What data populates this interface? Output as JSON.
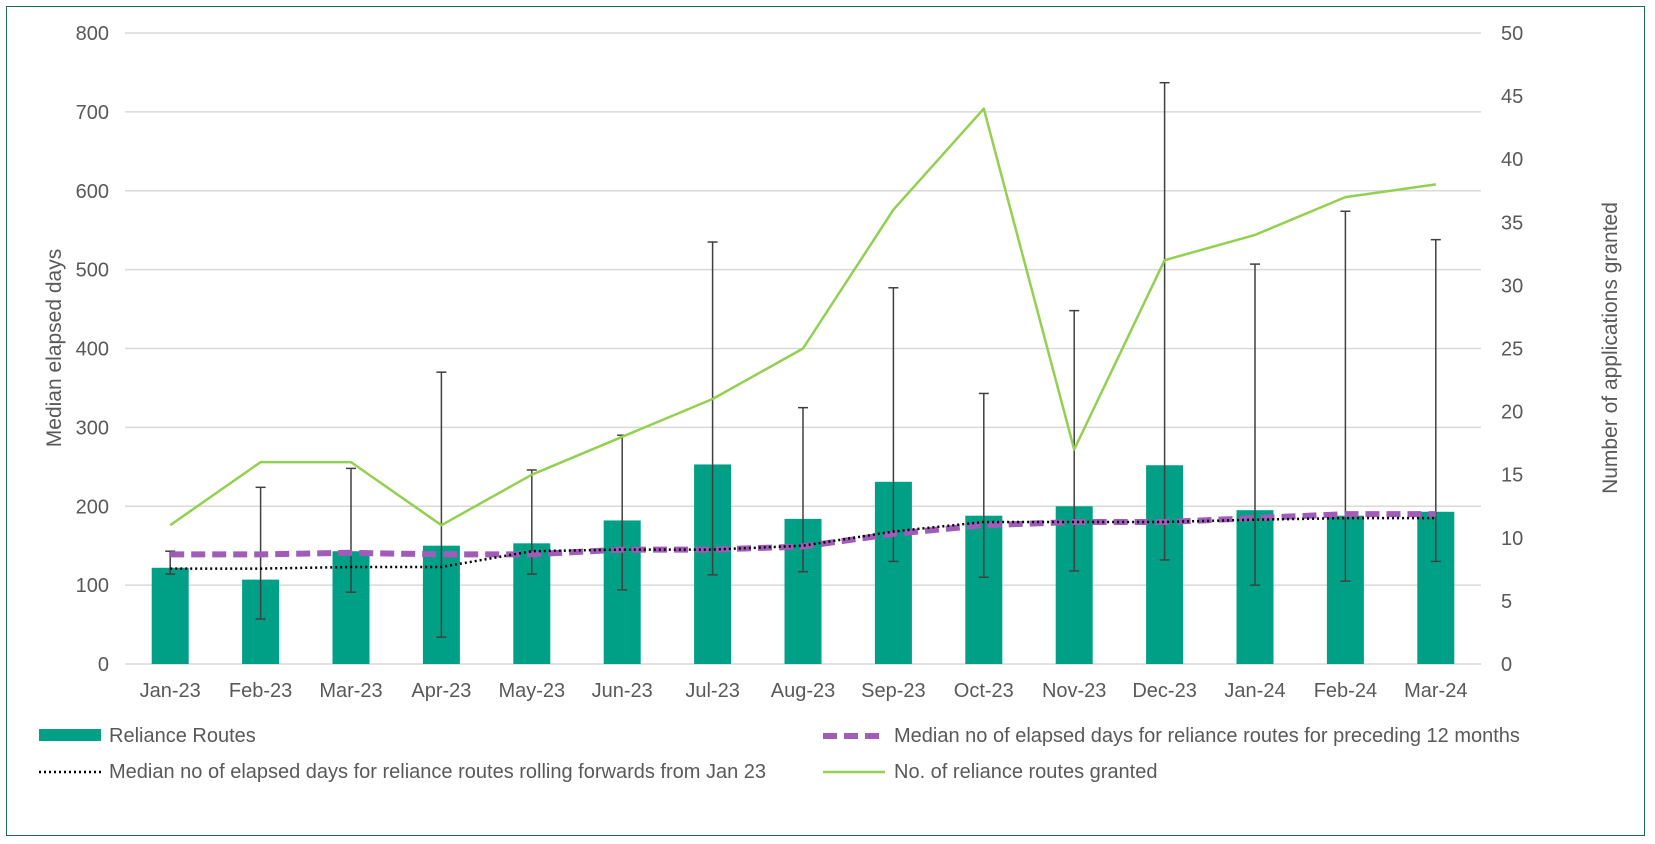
{
  "chart_data": {
    "type": "bar",
    "categories": [
      "Jan-23",
      "Feb-23",
      "Mar-23",
      "Apr-23",
      "May-23",
      "Jun-23",
      "Jul-23",
      "Aug-23",
      "Sep-23",
      "Oct-23",
      "Nov-23",
      "Dec-23",
      "Jan-24",
      "Feb-24",
      "Mar-24"
    ],
    "ylabel": "Median elapsed days",
    "y2label": "Number  of applications granted",
    "ylim": [
      0,
      800
    ],
    "y2lim": [
      0,
      50
    ],
    "yticks": [
      "0",
      "100",
      "200",
      "300",
      "400",
      "500",
      "600",
      "700",
      "800"
    ],
    "y2ticks": [
      "0",
      "5",
      "10",
      "15",
      "20",
      "25",
      "30",
      "35",
      "40",
      "45",
      "50"
    ],
    "grid": true,
    "legend_position": "bottom",
    "series": [
      {
        "name": "Reliance Routes",
        "kind": "bar",
        "axis": "left",
        "color": "#00a087",
        "values": [
          122,
          107,
          143,
          150,
          153,
          182,
          253,
          184,
          231,
          188,
          200,
          252,
          195,
          188,
          193
        ],
        "error_low": [
          114,
          57,
          91,
          34,
          114,
          94,
          113,
          117,
          130,
          110,
          118,
          132,
          100,
          105,
          130
        ],
        "error_high": [
          143,
          224,
          248,
          370,
          246,
          290,
          535,
          325,
          477,
          343,
          448,
          737,
          507,
          574,
          538
        ]
      },
      {
        "name": "Median no of elapsed days for reliance routes for preceding 12 months",
        "kind": "line",
        "style": "dashed",
        "axis": "left",
        "color": "#a05cb8",
        "values": [
          139,
          139,
          141,
          139,
          139,
          145,
          145,
          149,
          165,
          176,
          180,
          180,
          185,
          190,
          190
        ]
      },
      {
        "name": "Median no of elapsed days for reliance routes rolling forwards from Jan 23",
        "kind": "line",
        "style": "dotted",
        "axis": "left",
        "color": "#000000",
        "values": [
          121,
          121,
          123,
          123,
          143,
          145,
          145,
          150,
          168,
          180,
          180,
          180,
          183,
          185,
          185
        ]
      },
      {
        "name": "No. of reliance routes granted",
        "kind": "line",
        "style": "solid",
        "axis": "right",
        "color": "#92d050",
        "values": [
          11,
          16,
          16,
          11,
          15,
          18,
          21,
          25,
          36,
          44,
          17,
          32,
          34,
          37,
          38
        ]
      }
    ]
  }
}
